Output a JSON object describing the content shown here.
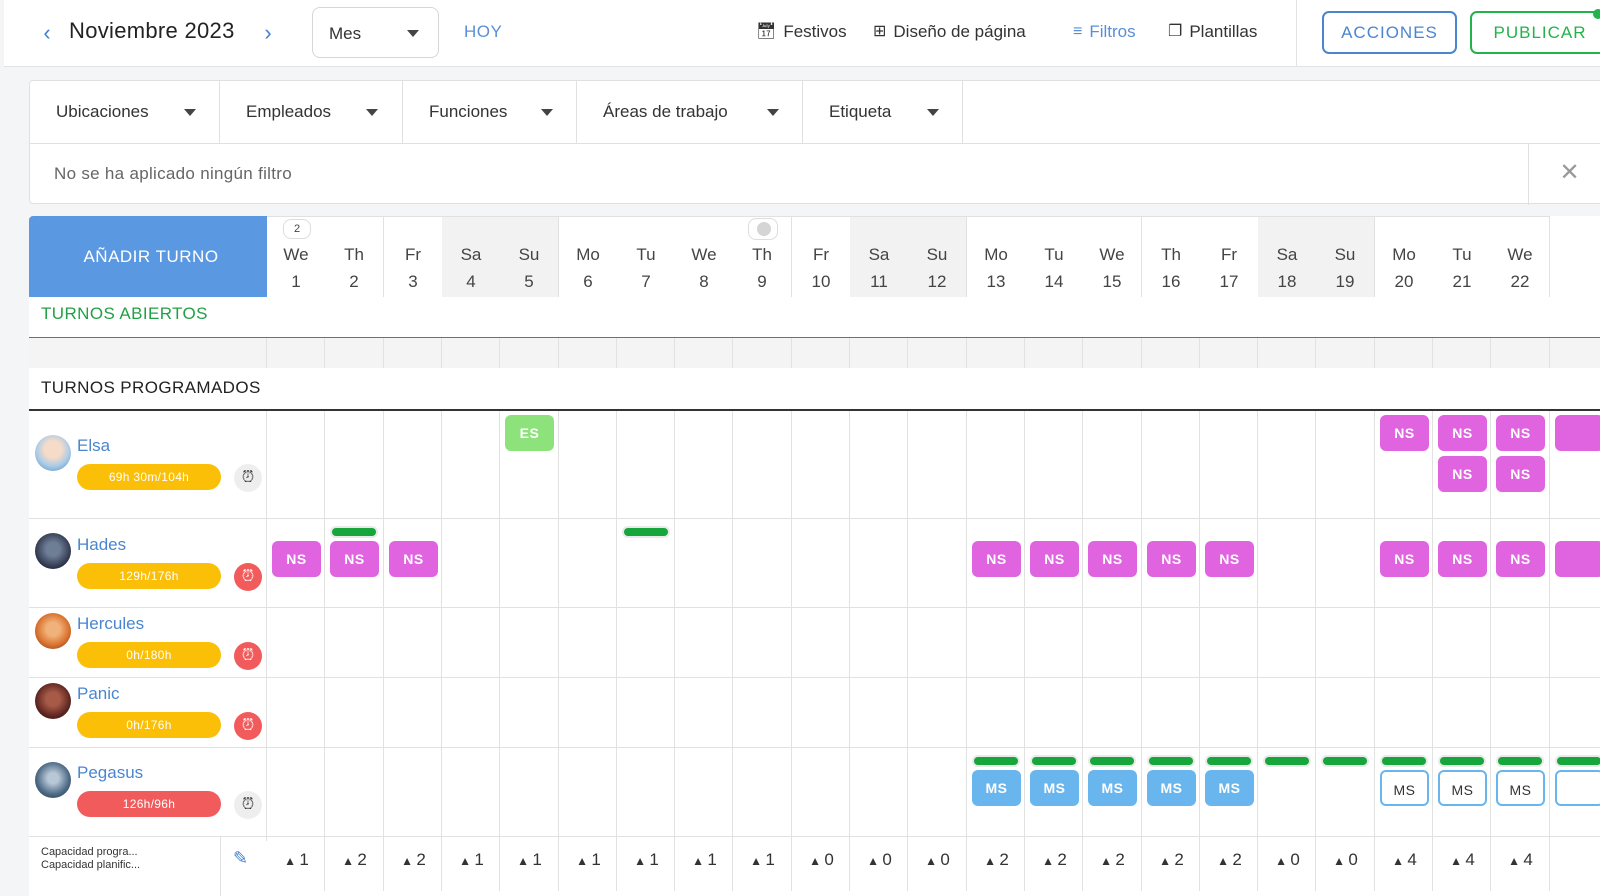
{
  "header": {
    "month": "Noviembre 2023",
    "view": "Mes",
    "today": "HOY",
    "tools": [
      {
        "icon": "calendar-icon",
        "label": "Festivos",
        "active": false
      },
      {
        "icon": "layout-icon",
        "label": "Diseño de página",
        "active": false
      },
      {
        "icon": "filter-icon",
        "label": "Filtros",
        "active": true
      },
      {
        "icon": "template-icon",
        "label": "Plantillas",
        "active": false
      }
    ],
    "actions_label": "ACCIONES",
    "publish_label": "PUBLICAR"
  },
  "filters": {
    "dropdowns": [
      "Ubicaciones",
      "Empleados",
      "Funciones",
      "Áreas de trabajo",
      "Etiqueta"
    ],
    "empty_text": "No se ha aplicado ningún filtro"
  },
  "schedule": {
    "add_shift": "AÑADIR TURNO",
    "open_shifts_title": "TURNOS ABIERTOS",
    "scheduled_title": "TURNOS PROGRAMADOS",
    "days": [
      {
        "dow": "We",
        "day": "1",
        "weekend": false,
        "badge": "2"
      },
      {
        "dow": "Th",
        "day": "2",
        "weekend": false
      },
      {
        "dow": "Fr",
        "day": "3",
        "weekend": false
      },
      {
        "dow": "Sa",
        "day": "4",
        "weekend": true
      },
      {
        "dow": "Su",
        "day": "5",
        "weekend": true
      },
      {
        "dow": "Mo",
        "day": "6",
        "weekend": false
      },
      {
        "dow": "Tu",
        "day": "7",
        "weekend": false
      },
      {
        "dow": "We",
        "day": "8",
        "weekend": false
      },
      {
        "dow": "Th",
        "day": "9",
        "weekend": false,
        "dot": true
      },
      {
        "dow": "Fr",
        "day": "10",
        "weekend": false
      },
      {
        "dow": "Sa",
        "day": "11",
        "weekend": true
      },
      {
        "dow": "Su",
        "day": "12",
        "weekend": true
      },
      {
        "dow": "Mo",
        "day": "13",
        "weekend": false
      },
      {
        "dow": "Tu",
        "day": "14",
        "weekend": false
      },
      {
        "dow": "We",
        "day": "15",
        "weekend": false
      },
      {
        "dow": "Th",
        "day": "16",
        "weekend": false
      },
      {
        "dow": "Fr",
        "day": "17",
        "weekend": false
      },
      {
        "dow": "Sa",
        "day": "18",
        "weekend": true
      },
      {
        "dow": "Su",
        "day": "19",
        "weekend": true
      },
      {
        "dow": "Mo",
        "day": "20",
        "weekend": false
      },
      {
        "dow": "Tu",
        "day": "21",
        "weekend": false
      },
      {
        "dow": "We",
        "day": "22",
        "weekend": false
      }
    ],
    "employees": [
      {
        "name": "Elsa",
        "hours": "69h 30m/104h",
        "hours_color": "yellow",
        "clock": "grey"
      },
      {
        "name": "Hades",
        "hours": "129h/176h",
        "hours_color": "yellow",
        "clock": "red"
      },
      {
        "name": "Hercules",
        "hours": "0h/180h",
        "hours_color": "yellow",
        "clock": "red"
      },
      {
        "name": "Panic",
        "hours": "0h/176h",
        "hours_color": "yellow",
        "clock": "red"
      },
      {
        "name": "Pegasus",
        "hours": "126h/96h",
        "hours_color": "red",
        "clock": "grey"
      }
    ],
    "shift_codes": {
      "ns": "NS",
      "es": "ES",
      "ms": "MS"
    },
    "capacity": {
      "label_1": "Capacidad progra...",
      "label_2": "Capacidad planific...",
      "values": [
        "1",
        "2",
        "2",
        "1",
        "1",
        "1",
        "1",
        "1",
        "1",
        "0",
        "0",
        "0",
        "2",
        "2",
        "2",
        "2",
        "2",
        "0",
        "0",
        "4",
        "4",
        "4"
      ]
    }
  },
  "colors": {
    "accent": "#4a86cf",
    "publish": "#22b34a",
    "add_shift": "#5b98e2",
    "ns": "#e063e0",
    "es": "#8ee27c",
    "ms": "#69b6ee",
    "hours_yellow": "#fbbf08",
    "hours_red": "#f25b5b"
  }
}
